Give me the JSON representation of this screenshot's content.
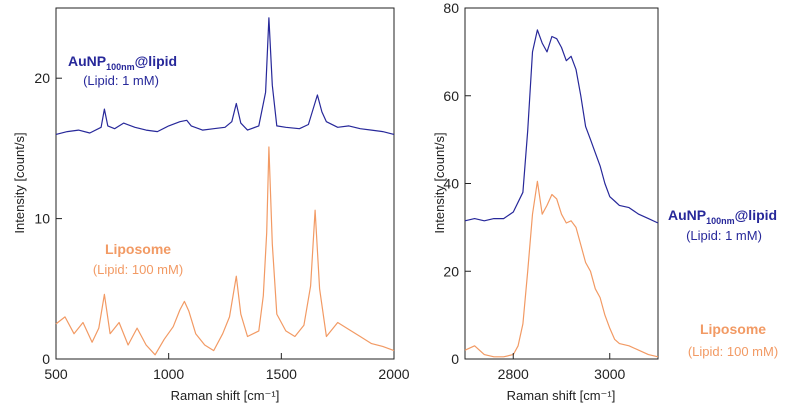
{
  "colors": {
    "aunp": "#27289a",
    "liposome": "#f29a64",
    "axis": "#222222"
  },
  "annotations": {
    "aunp_main": "AuNP",
    "aunp_sub": "100nm",
    "aunp_tail": "@lipid",
    "aunp_conc": "(Lipid: 1 mM)",
    "lipo_main": "Liposome",
    "lipo_conc": "(Lipid: 100 mM)"
  },
  "chart_data": [
    {
      "type": "line",
      "xlabel": "Raman shift [cm⁻¹]",
      "ylabel": "Intensity [count/s]",
      "xlim": [
        500,
        2000
      ],
      "ylim": [
        0,
        25
      ],
      "x_ticks": [
        "500",
        "1000",
        "1500",
        "2000"
      ],
      "y_ticks": [
        "0",
        "10",
        "20"
      ],
      "series": [
        {
          "name": "AuNP100nm@lipid (Lipid: 1 mM)",
          "color": "#27289a",
          "x": [
            500,
            550,
            600,
            650,
            700,
            715,
            730,
            760,
            800,
            850,
            900,
            950,
            1000,
            1050,
            1080,
            1100,
            1150,
            1200,
            1250,
            1280,
            1300,
            1320,
            1350,
            1400,
            1430,
            1445,
            1460,
            1480,
            1520,
            1580,
            1620,
            1660,
            1680,
            1700,
            1750,
            1800,
            1850,
            1900,
            1950,
            2000
          ],
          "y": [
            16.0,
            16.2,
            16.3,
            16.1,
            16.5,
            17.8,
            16.6,
            16.4,
            16.8,
            16.5,
            16.3,
            16.2,
            16.6,
            16.9,
            17.0,
            16.6,
            16.3,
            16.4,
            16.5,
            16.9,
            18.2,
            16.8,
            16.3,
            16.6,
            19.0,
            24.3,
            19.5,
            16.6,
            16.5,
            16.4,
            16.7,
            18.8,
            17.6,
            16.9,
            16.5,
            16.6,
            16.4,
            16.3,
            16.2,
            16.0
          ]
        },
        {
          "name": "Liposome (Lipid: 100 mM)",
          "color": "#f29a64",
          "x": [
            500,
            540,
            580,
            620,
            660,
            690,
            715,
            740,
            780,
            820,
            860,
            900,
            940,
            980,
            1020,
            1050,
            1070,
            1090,
            1120,
            1160,
            1200,
            1240,
            1270,
            1300,
            1320,
            1350,
            1400,
            1420,
            1435,
            1445,
            1460,
            1480,
            1520,
            1560,
            1600,
            1630,
            1650,
            1670,
            1700,
            1750,
            1800,
            1850,
            1900,
            1950,
            2000
          ],
          "y": [
            2.5,
            3.0,
            1.8,
            2.6,
            1.2,
            2.2,
            4.6,
            1.8,
            2.6,
            1.0,
            2.2,
            1.0,
            0.3,
            1.4,
            2.3,
            3.5,
            4.1,
            3.4,
            1.8,
            1.0,
            0.6,
            1.8,
            3.0,
            5.9,
            3.2,
            1.6,
            2.0,
            4.5,
            9.0,
            15.1,
            8.2,
            3.2,
            2.0,
            1.6,
            2.4,
            5.2,
            10.6,
            5.0,
            1.6,
            2.6,
            2.1,
            1.6,
            1.1,
            0.9,
            0.6
          ]
        }
      ]
    },
    {
      "type": "line",
      "xlabel": "Raman shift [cm⁻¹]",
      "ylabel": "Intensity [count/s]",
      "xlim": [
        2700,
        3100
      ],
      "ylim": [
        0,
        80
      ],
      "x_ticks": [
        "2800",
        "3000"
      ],
      "y_ticks": [
        "0",
        "20",
        "40",
        "60",
        "80"
      ],
      "series": [
        {
          "name": "AuNP100nm@lipid (Lipid: 1 mM)",
          "color": "#27289a",
          "x": [
            2700,
            2720,
            2740,
            2760,
            2780,
            2800,
            2820,
            2830,
            2840,
            2850,
            2860,
            2870,
            2880,
            2890,
            2900,
            2910,
            2920,
            2930,
            2940,
            2950,
            2960,
            2970,
            2980,
            2990,
            3000,
            3010,
            3020,
            3040,
            3060,
            3080,
            3100
          ],
          "y": [
            31.5,
            32.0,
            31.5,
            32.0,
            32.0,
            33.5,
            38.0,
            52.0,
            70.0,
            75.0,
            72.0,
            70.0,
            73.5,
            73.0,
            71.0,
            68.0,
            69.0,
            66.0,
            60.0,
            53.0,
            50.0,
            47.0,
            44.0,
            40.0,
            37.0,
            36.0,
            35.0,
            34.5,
            33.0,
            32.0,
            31.0
          ]
        },
        {
          "name": "Liposome (Lipid: 100 mM)",
          "color": "#f29a64",
          "x": [
            2700,
            2720,
            2740,
            2760,
            2780,
            2800,
            2810,
            2820,
            2830,
            2840,
            2850,
            2860,
            2870,
            2880,
            2890,
            2900,
            2910,
            2920,
            2930,
            2940,
            2950,
            2960,
            2970,
            2980,
            2990,
            3000,
            3010,
            3020,
            3040,
            3060,
            3080,
            3100
          ],
          "y": [
            2.0,
            3.0,
            1.0,
            0.5,
            0.5,
            1.0,
            3.0,
            8.0,
            20.0,
            33.0,
            40.5,
            33.0,
            35.0,
            37.5,
            36.5,
            33.0,
            31.0,
            31.5,
            30.0,
            26.0,
            22.0,
            20.0,
            16.0,
            14.0,
            10.0,
            7.0,
            4.5,
            3.5,
            3.0,
            2.0,
            1.0,
            0.5
          ]
        }
      ]
    }
  ]
}
